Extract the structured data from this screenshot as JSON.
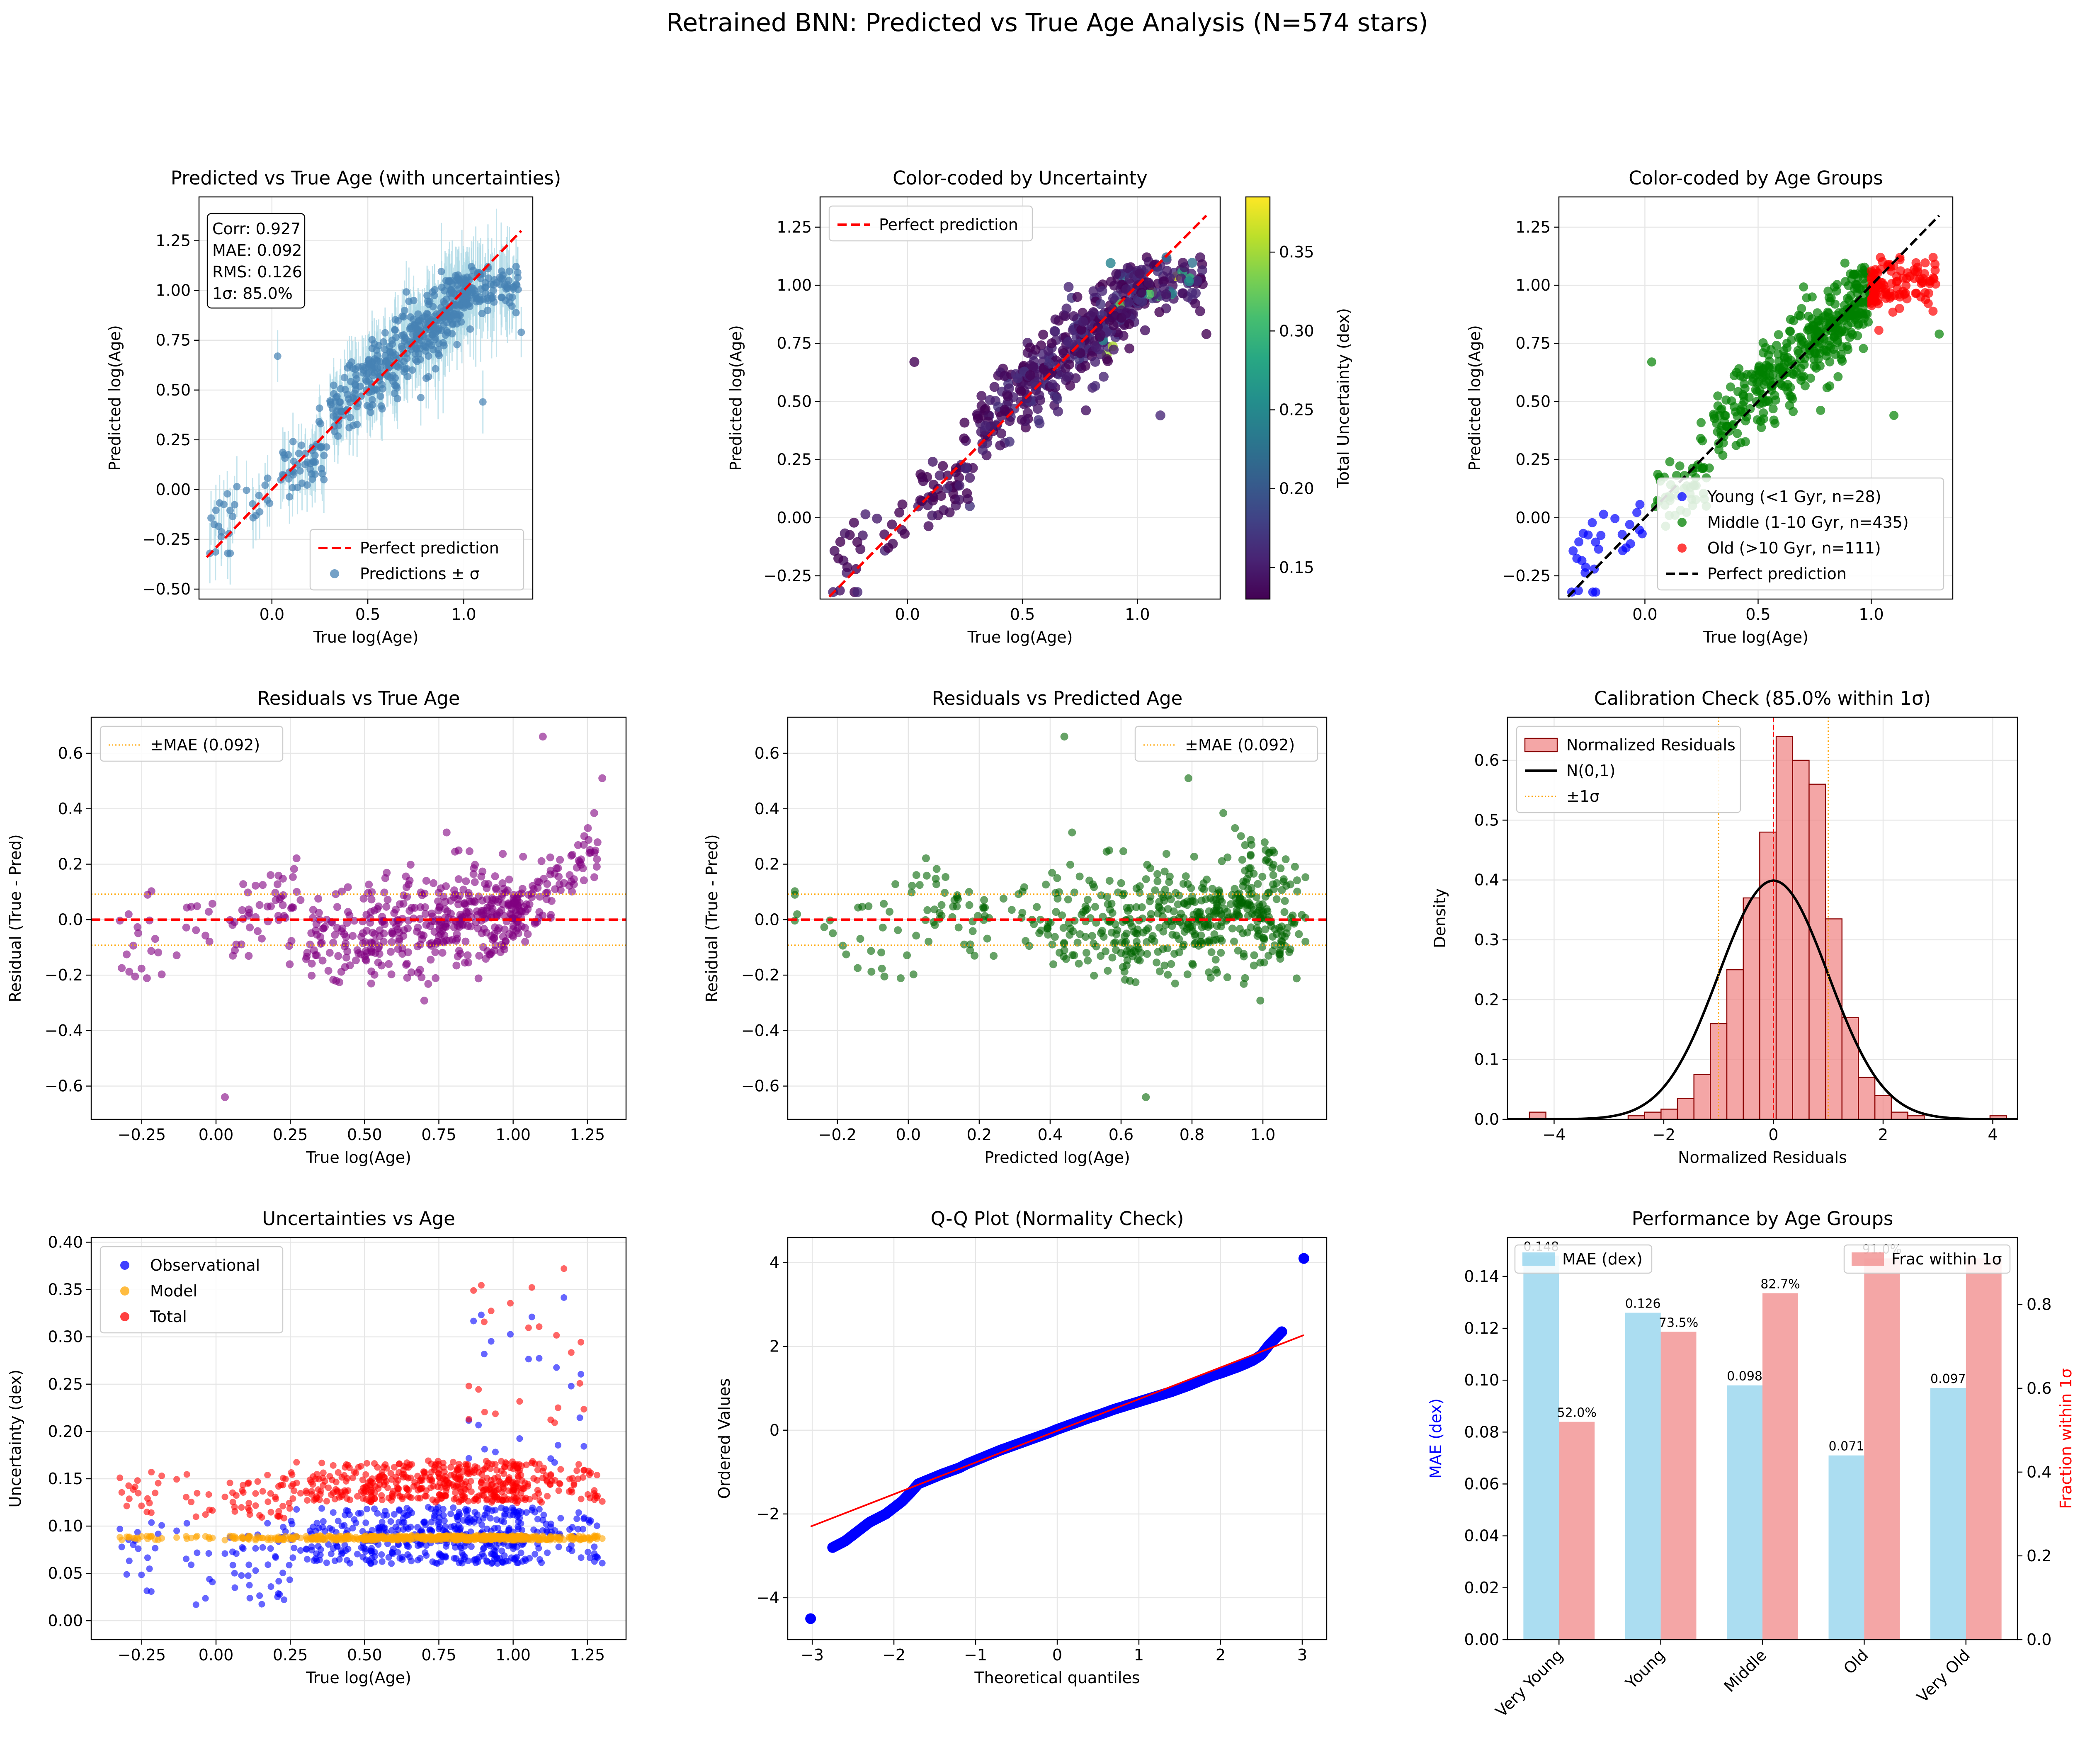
{
  "title": "Retrained BNN: Predicted vs True Age Analysis (N=574 stars)",
  "colors": {
    "blue": "#0000ff",
    "red": "#ff0000",
    "green": "#008000",
    "orange": "#ffa500",
    "purple": "#800080",
    "steel": "#4682b4",
    "lightblue": "#add8e6",
    "skyblue": "#87ceeb",
    "lightcoral": "#f08080",
    "darkgreen": "#006400",
    "black": "#000000"
  },
  "chart_data": [
    {
      "type": "scatter",
      "title": "Predicted vs True Age (with uncertainties)",
      "xlabel": "True log(Age)",
      "ylabel": "Predicted log(Age)",
      "xlim": [
        -0.38,
        1.36
      ],
      "ylim": [
        -0.55,
        1.47
      ],
      "xticks": [
        "0.0",
        "0.5",
        "1.0"
      ],
      "xtick_values": [
        0,
        0.5,
        1.0
      ],
      "yticks": [
        "−0.50",
        "−0.25",
        "0.00",
        "0.25",
        "0.50",
        "0.75",
        "1.00",
        "1.25"
      ],
      "ytick_values": [
        -0.5,
        -0.25,
        0,
        0.25,
        0.5,
        0.75,
        1.0,
        1.25
      ],
      "grid": true,
      "stats_box": [
        "Corr: 0.927",
        "MAE: 0.092",
        "RMS: 0.126",
        "1σ: 85.0%"
      ],
      "legend": {
        "location": "lower right",
        "entries": [
          "Perfect prediction",
          "Predictions ± σ"
        ]
      },
      "series": [
        {
          "name": "Predictions ± σ",
          "kind": "errorbar",
          "color": "steelblue",
          "error_color": "lightblue",
          "n_points": 574,
          "trend": "y ≈ x with scatter ~0.1, error ~±0.15",
          "x_range": [
            -0.33,
            1.3
          ]
        }
      ],
      "lines": [
        {
          "name": "Perfect prediction",
          "x": [
            -0.34,
            1.3
          ],
          "y": [
            -0.34,
            1.3
          ],
          "style": "dashed",
          "color": "red"
        }
      ]
    },
    {
      "type": "scatter",
      "title": "Color-coded by Uncertainty",
      "xlabel": "True log(Age)",
      "ylabel": "Predicted log(Age)",
      "xlim": [
        -0.38,
        1.36
      ],
      "ylim": [
        -0.35,
        1.38
      ],
      "xticks": [
        "0.0",
        "0.5",
        "1.0"
      ],
      "xtick_values": [
        0,
        0.5,
        1.0
      ],
      "yticks": [
        "−0.25",
        "0.00",
        "0.25",
        "0.50",
        "0.75",
        "1.00",
        "1.25"
      ],
      "ytick_values": [
        -0.25,
        0,
        0.25,
        0.5,
        0.75,
        1.0,
        1.25
      ],
      "grid": true,
      "colorbar": {
        "label": "Total Uncertainty (dex)",
        "range": [
          0.13,
          0.385
        ],
        "ticks": [
          "0.15",
          "0.20",
          "0.25",
          "0.30",
          "0.35"
        ],
        "tick_values": [
          0.15,
          0.2,
          0.25,
          0.3,
          0.35
        ],
        "colormap": "viridis"
      },
      "legend": {
        "location": "upper left",
        "entries": [
          "Perfect prediction"
        ]
      },
      "lines": [
        {
          "name": "Perfect prediction",
          "x": [
            -0.34,
            1.3
          ],
          "y": [
            -0.34,
            1.3
          ],
          "style": "dashed",
          "color": "red"
        }
      ]
    },
    {
      "type": "scatter",
      "title": "Color-coded by Age Groups",
      "xlabel": "True log(Age)",
      "ylabel": "Predicted log(Age)",
      "xlim": [
        -0.38,
        1.36
      ],
      "ylim": [
        -0.35,
        1.38
      ],
      "xticks": [
        "0.0",
        "0.5",
        "1.0"
      ],
      "xtick_values": [
        0,
        0.5,
        1.0
      ],
      "yticks": [
        "−0.25",
        "0.00",
        "0.25",
        "0.50",
        "0.75",
        "1.00",
        "1.25"
      ],
      "ytick_values": [
        -0.25,
        0,
        0.25,
        0.5,
        0.75,
        1.0,
        1.25
      ],
      "grid": true,
      "legend": {
        "location": "lower right",
        "entries": [
          "Young (<1 Gyr, n=28)",
          "Middle (1-10 Gyr, n=435)",
          "Old (>10 Gyr, n=111)",
          "Perfect prediction"
        ]
      },
      "series": [
        {
          "name": "Young (<1 Gyr, n=28)",
          "color": "blue",
          "n": 28,
          "x_range": [
            -0.33,
            0.0
          ]
        },
        {
          "name": "Middle (1-10 Gyr, n=435)",
          "color": "green",
          "n": 435,
          "x_range": [
            0.0,
            1.0
          ]
        },
        {
          "name": "Old (>10 Gyr, n=111)",
          "color": "red",
          "n": 111,
          "x_range": [
            1.0,
            1.3
          ]
        }
      ],
      "lines": [
        {
          "name": "Perfect prediction",
          "x": [
            -0.34,
            1.3
          ],
          "y": [
            -0.34,
            1.3
          ],
          "style": "dashed",
          "color": "black"
        }
      ]
    },
    {
      "type": "scatter",
      "title": "Residuals vs True Age",
      "xlabel": "True log(Age)",
      "ylabel": "Residual (True - Pred)",
      "xlim": [
        -0.42,
        1.38
      ],
      "ylim": [
        -0.72,
        0.73
      ],
      "xticks": [
        "−0.25",
        "0.00",
        "0.25",
        "0.50",
        "0.75",
        "1.00",
        "1.25"
      ],
      "xtick_values": [
        -0.25,
        0,
        0.25,
        0.5,
        0.75,
        1.0,
        1.25
      ],
      "yticks": [
        "−0.6",
        "−0.4",
        "−0.2",
        "0.0",
        "0.2",
        "0.4",
        "0.6"
      ],
      "ytick_values": [
        -0.6,
        -0.4,
        -0.2,
        0,
        0.2,
        0.4,
        0.6
      ],
      "grid": true,
      "legend": {
        "location": "upper left",
        "entries": [
          "±MAE (0.092)"
        ]
      },
      "series": [
        {
          "color": "purple",
          "n": 574,
          "trend": "residual rises from ~-0.2 at x=-0.3 to ~+0.3 at x=1.3"
        }
      ],
      "hlines": [
        {
          "y": 0,
          "style": "dashed",
          "color": "red"
        },
        {
          "y": 0.092,
          "style": "dotted",
          "color": "orange"
        },
        {
          "y": -0.092,
          "style": "dotted",
          "color": "orange"
        }
      ]
    },
    {
      "type": "scatter",
      "title": "Residuals vs Predicted Age",
      "xlabel": "Predicted log(Age)",
      "ylabel": "Residual (True - Pred)",
      "xlim": [
        -0.34,
        1.18
      ],
      "ylim": [
        -0.72,
        0.73
      ],
      "xticks": [
        "−0.2",
        "0.0",
        "0.2",
        "0.4",
        "0.6",
        "0.8",
        "1.0"
      ],
      "xtick_values": [
        -0.2,
        0,
        0.2,
        0.4,
        0.6,
        0.8,
        1.0
      ],
      "yticks": [
        "−0.6",
        "−0.4",
        "−0.2",
        "0.0",
        "0.2",
        "0.4",
        "0.6"
      ],
      "ytick_values": [
        -0.6,
        -0.4,
        -0.2,
        0,
        0.2,
        0.4,
        0.6
      ],
      "grid": true,
      "legend": {
        "location": "upper right",
        "entries": [
          "±MAE (0.092)"
        ]
      },
      "series": [
        {
          "color": "darkgreen",
          "n": 574,
          "trend": "flat around 0, gap at x 0.2-0.4"
        }
      ],
      "hlines": [
        {
          "y": 0,
          "style": "dashed",
          "color": "red"
        },
        {
          "y": 0.092,
          "style": "dotted",
          "color": "orange"
        },
        {
          "y": -0.092,
          "style": "dotted",
          "color": "orange"
        }
      ]
    },
    {
      "type": "bar",
      "title": "Calibration Check (85.0% within 1σ)",
      "xlabel": "Normalized Residuals",
      "ylabel": "Density",
      "xlim": [
        -4.85,
        4.45
      ],
      "ylim": [
        0,
        0.672
      ],
      "xticks": [
        "−4",
        "−2",
        "0",
        "2",
        "4"
      ],
      "xtick_values": [
        -4,
        -2,
        0,
        2,
        4
      ],
      "yticks": [
        "0.0",
        "0.1",
        "0.2",
        "0.3",
        "0.4",
        "0.5",
        "0.6"
      ],
      "ytick_values": [
        0,
        0.1,
        0.2,
        0.3,
        0.4,
        0.5,
        0.6
      ],
      "grid": true,
      "legend": {
        "location": "upper left",
        "entries": [
          "Normalized Residuals",
          "N(0,1)",
          "±1σ"
        ]
      },
      "bin_edges": [
        -4.45,
        -4.15,
        -3.85,
        -3.55,
        -3.25,
        -2.95,
        -2.65,
        -2.35,
        -2.05,
        -1.75,
        -1.45,
        -1.15,
        -0.85,
        -0.55,
        -0.25,
        0.05,
        0.35,
        0.65,
        0.95,
        1.25,
        1.55,
        1.85,
        2.15,
        2.45,
        2.75,
        3.05,
        3.35,
        3.65,
        3.95,
        4.25
      ],
      "values": [
        0.012,
        0,
        0,
        0,
        0,
        0,
        0.006,
        0.012,
        0.017,
        0.035,
        0.075,
        0.16,
        0.25,
        0.37,
        0.48,
        0.64,
        0.6,
        0.56,
        0.335,
        0.17,
        0.07,
        0.04,
        0.012,
        0.006,
        0,
        0,
        0,
        0,
        0.006
      ],
      "curve": {
        "name": "N(0,1)",
        "mean": 0,
        "std": 1,
        "color": "black"
      },
      "vlines": [
        {
          "x": 0,
          "style": "dashed",
          "color": "red"
        },
        {
          "x": -1,
          "style": "dotted",
          "color": "orange"
        },
        {
          "x": 1,
          "style": "dotted",
          "color": "orange"
        }
      ]
    },
    {
      "type": "scatter",
      "title": "Uncertainties vs Age",
      "xlabel": "True log(Age)",
      "ylabel": "Uncertainty (dex)",
      "xlim": [
        -0.42,
        1.38
      ],
      "ylim": [
        -0.02,
        0.405
      ],
      "xticks": [
        "−0.25",
        "0.00",
        "0.25",
        "0.50",
        "0.75",
        "1.00",
        "1.25"
      ],
      "xtick_values": [
        -0.25,
        0,
        0.25,
        0.5,
        0.75,
        1.0,
        1.25
      ],
      "yticks": [
        "0.00",
        "0.05",
        "0.10",
        "0.15",
        "0.20",
        "0.25",
        "0.30",
        "0.35",
        "0.40"
      ],
      "ytick_values": [
        0,
        0.05,
        0.1,
        0.15,
        0.2,
        0.25,
        0.3,
        0.35,
        0.4
      ],
      "grid": true,
      "legend": {
        "location": "upper left",
        "entries": [
          "Observational",
          "Model",
          "Total"
        ]
      },
      "series": [
        {
          "name": "Observational",
          "color": "blue",
          "typical": 0.1,
          "range": [
            0.0,
            0.35
          ]
        },
        {
          "name": "Model",
          "color": "orange",
          "typical": 0.087,
          "range": [
            0.085,
            0.09
          ]
        },
        {
          "name": "Total",
          "color": "red",
          "typical": 0.155,
          "range": [
            0.13,
            0.385
          ]
        }
      ]
    },
    {
      "type": "scatter",
      "title": "Q-Q Plot (Normality Check)",
      "xlabel": "Theoretical quantiles",
      "ylabel": "Ordered Values",
      "xlim": [
        -3.3,
        3.3
      ],
      "ylim": [
        -5.0,
        4.6
      ],
      "xticks": [
        "−3",
        "−2",
        "−1",
        "0",
        "1",
        "2",
        "3"
      ],
      "xtick_values": [
        -3,
        -2,
        -1,
        0,
        1,
        2,
        3
      ],
      "yticks": [
        "−4",
        "−2",
        "0",
        "2",
        "4"
      ],
      "ytick_values": [
        -4,
        -2,
        0,
        2,
        4
      ],
      "grid": true,
      "fit_line": {
        "x": [
          -3.02,
          3.02
        ],
        "y": [
          -2.3,
          2.27
        ],
        "color": "red"
      },
      "series": [
        {
          "color": "blue",
          "x": [
            -3.02,
            -2.75,
            -2.6,
            -2.5,
            -2.4,
            -2.3,
            -2.2,
            -2.1,
            -2.0,
            -1.9,
            -1.8,
            -1.7,
            -1.6,
            -1.5,
            -1.4,
            -1.3,
            -1.2,
            -1.1,
            -1.0,
            -0.9,
            -0.8,
            -0.7,
            -0.6,
            -0.5,
            -0.4,
            -0.3,
            -0.2,
            -0.1,
            0,
            0.1,
            0.2,
            0.3,
            0.4,
            0.5,
            0.6,
            0.7,
            0.8,
            0.9,
            1.0,
            1.1,
            1.2,
            1.3,
            1.4,
            1.5,
            1.6,
            1.7,
            1.8,
            1.9,
            2.0,
            2.1,
            2.2,
            2.3,
            2.4,
            2.5,
            2.6,
            2.75,
            3.02
          ],
          "y": [
            -4.5,
            -2.8,
            -2.65,
            -2.5,
            -2.35,
            -2.2,
            -2.1,
            -2.0,
            -1.85,
            -1.7,
            -1.5,
            -1.28,
            -1.2,
            -1.12,
            -1.04,
            -0.97,
            -0.9,
            -0.8,
            -0.72,
            -0.64,
            -0.56,
            -0.48,
            -0.41,
            -0.34,
            -0.27,
            -0.2,
            -0.13,
            -0.06,
            0.02,
            0.09,
            0.16,
            0.23,
            0.3,
            0.36,
            0.43,
            0.5,
            0.56,
            0.62,
            0.68,
            0.74,
            0.8,
            0.86,
            0.92,
            0.99,
            1.06,
            1.14,
            1.22,
            1.3,
            1.36,
            1.43,
            1.5,
            1.58,
            1.67,
            1.8,
            2.05,
            2.35,
            4.1
          ]
        }
      ]
    },
    {
      "type": "bar",
      "title": "Performance by Age Groups",
      "xlabel": "Age Groups",
      "ylabel": "MAE (dex)",
      "ylabel_right": "Fraction within 1σ",
      "categories": [
        "Very Young",
        "Young",
        "Middle",
        "Old",
        "Very Old"
      ],
      "ylim": [
        0,
        0.155
      ],
      "ylim_right": [
        0,
        0.96
      ],
      "yticks": [
        "0.00",
        "0.02",
        "0.04",
        "0.06",
        "0.08",
        "0.10",
        "0.12",
        "0.14"
      ],
      "ytick_values": [
        0,
        0.02,
        0.04,
        0.06,
        0.08,
        0.1,
        0.12,
        0.14
      ],
      "yticks_right": [
        "0.0",
        "0.2",
        "0.4",
        "0.6",
        "0.8"
      ],
      "ytick_values_right": [
        0,
        0.2,
        0.4,
        0.6,
        0.8
      ],
      "series": [
        {
          "name": "MAE (dex)",
          "color": "skyblue",
          "values": [
            0.148,
            0.126,
            0.098,
            0.071,
            0.097
          ],
          "labels": [
            "0.148",
            "0.126",
            "0.098",
            "0.071",
            "0.097"
          ]
        },
        {
          "name": "Frac within 1σ",
          "color": "lightcoral",
          "values": [
            0.52,
            0.735,
            0.827,
            0.91,
            0.91
          ],
          "labels": [
            "52.0%",
            "73.5%",
            "82.7%",
            "91.0%",
            ""
          ]
        }
      ],
      "legend": {
        "left": "MAE (dex)",
        "right": "Frac within 1σ"
      }
    }
  ]
}
